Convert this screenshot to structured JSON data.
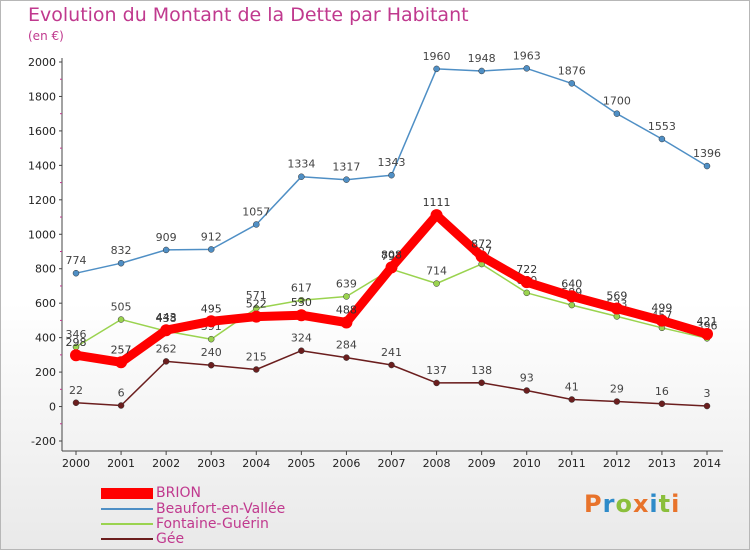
{
  "title": "Evolution du Montant de la Dette par Habitant",
  "subtitle": "(en €)",
  "logo": {
    "text": "Proxiti",
    "colors": [
      "#e8732b",
      "#2e8bc9",
      "#8bbf3c",
      "#e8732b",
      "#2e8bc9",
      "#8bbf3c",
      "#e8732b"
    ]
  },
  "chart_data": {
    "type": "line",
    "x": [
      "2000",
      "2001",
      "2002",
      "2003",
      "2004",
      "2005",
      "2006",
      "2007",
      "2008",
      "2009",
      "2010",
      "2011",
      "2012",
      "2013",
      "2014"
    ],
    "ylim": [
      -200,
      2000
    ],
    "yticks": [
      -200,
      0,
      200,
      400,
      600,
      800,
      1000,
      1200,
      1400,
      1600,
      1800,
      2000
    ],
    "grid": false,
    "legend_position": "bottom-left",
    "series": [
      {
        "name": "Beaufort-en-Vallée",
        "color": "#4f8fc5",
        "values": [
          774,
          832,
          909,
          912,
          1057,
          1334,
          1317,
          1343,
          1960,
          1948,
          1963,
          1876,
          1700,
          1553,
          1396
        ]
      },
      {
        "name": "Fontaine-Guérin",
        "color": "#9ad34f",
        "values": [
          346,
          505,
          438,
          391,
          571,
          617,
          639,
          797,
          714,
          827,
          660,
          589,
          523,
          457,
          396
        ]
      },
      {
        "name": "Gée",
        "color": "#6b1e1e",
        "values": [
          22,
          6,
          262,
          240,
          215,
          324,
          284,
          241,
          137,
          138,
          93,
          41,
          29,
          16,
          3
        ]
      },
      {
        "name": "BRION",
        "color": "#ff0000",
        "values": [
          298,
          257,
          443,
          495,
          522,
          530,
          488,
          808,
          1111,
          872,
          722,
          640,
          569,
          499,
          421
        ]
      }
    ]
  }
}
